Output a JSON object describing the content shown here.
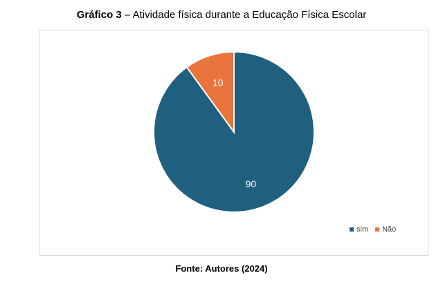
{
  "header": {
    "title_prefix": "Gráfico 3",
    "title_rest": " – Atividade física durante a Educação Física Escolar"
  },
  "footer": {
    "source": "Fonte: Autores (2024)"
  },
  "colors": {
    "sim": "#1f5f80",
    "nao": "#e8743b",
    "label_text": "#ffffff"
  },
  "chart_data": {
    "type": "pie",
    "categories": [
      "sim",
      "Não"
    ],
    "values": [
      90,
      10
    ],
    "data_labels": [
      "90",
      "10"
    ],
    "legend_position": "bottom-right"
  }
}
